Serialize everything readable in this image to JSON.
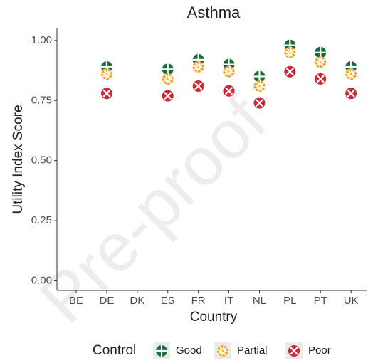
{
  "chart_data": {
    "type": "scatter",
    "title": "Asthma",
    "x_label": "Country",
    "y_label": "Utility Index Score",
    "watermark": "Pre-proof",
    "legend_title": "Control",
    "categories": [
      "BE",
      "DE",
      "DK",
      "ES",
      "FR",
      "IT",
      "NL",
      "PL",
      "PT",
      "UK"
    ],
    "series": [
      {
        "name": "Good",
        "color": "#1b6b3a",
        "marker": "plus",
        "values": [
          null,
          0.89,
          null,
          0.88,
          0.92,
          0.9,
          0.85,
          0.98,
          0.95,
          0.89
        ]
      },
      {
        "name": "Partial",
        "color": "#f5a623",
        "marker": "burst",
        "values": [
          null,
          0.86,
          null,
          0.84,
          0.89,
          0.87,
          0.81,
          0.95,
          0.91,
          0.86
        ]
      },
      {
        "name": "Poor",
        "color": "#cc2936",
        "marker": "cross",
        "values": [
          null,
          0.78,
          null,
          0.77,
          0.81,
          0.79,
          0.74,
          0.87,
          0.84,
          0.78
        ]
      }
    ],
    "ylim": [
      -0.04,
      1.05
    ],
    "yticks": [
      {
        "value": 0,
        "label": "0.00"
      },
      {
        "value": 0.25,
        "label": "0.25"
      },
      {
        "value": 0.5,
        "label": "0.50"
      },
      {
        "value": 0.75,
        "label": "0.75"
      },
      {
        "value": 1,
        "label": "1.00"
      }
    ],
    "grid": false
  }
}
